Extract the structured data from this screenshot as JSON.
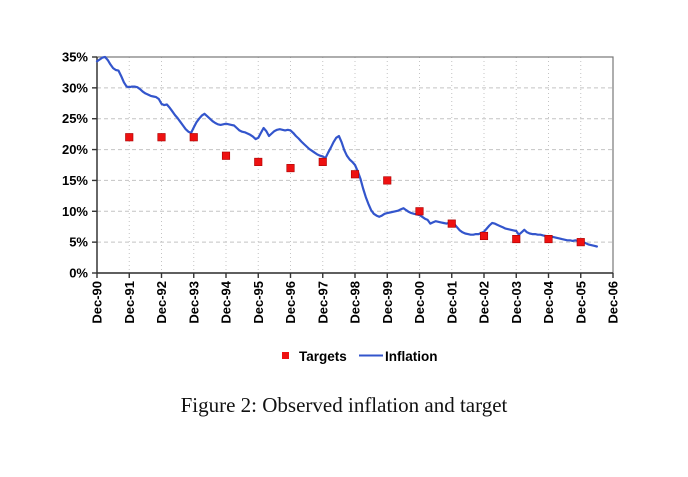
{
  "figure": {
    "caption": "Figure 2: Observed inflation and target"
  },
  "legend": {
    "targets_label": "Targets",
    "inflation_label": "Inflation"
  },
  "colors": {
    "inflation_line": "#3355cc",
    "target_marker": "#ee1111",
    "target_marker_border": "#aa0000",
    "gridline": "#c4c4c4",
    "plot_border": "#777777",
    "axis": "#333333",
    "text": "#000000",
    "background": "#ffffff"
  },
  "chart_data": {
    "type": "line",
    "title": "",
    "xlabel": "",
    "ylabel": "",
    "ylim": [
      0,
      35
    ],
    "y_tick_step": 5,
    "y_tick_labels": [
      "0%",
      "5%",
      "10%",
      "15%",
      "20%",
      "25%",
      "30%",
      "35%"
    ],
    "x_tick_labels": [
      "Dec-90",
      "Dec-91",
      "Dec-92",
      "Dec-93",
      "Dec-94",
      "Dec-95",
      "Dec-96",
      "Dec-97",
      "Dec-98",
      "Dec-99",
      "Dec-00",
      "Dec-01",
      "Dec-02",
      "Dec-03",
      "Dec-04",
      "Dec-05",
      "Dec-06"
    ],
    "grid": "dashed, both horizontal and vertical",
    "legend_position": "bottom center",
    "series": [
      {
        "name": "Inflation",
        "type": "line",
        "color": "#3355cc",
        "x_start": "Dec-90",
        "x_interval": "monthly",
        "values": [
          34.3,
          34.6,
          34.9,
          35.0,
          34.5,
          33.8,
          33.2,
          32.9,
          32.8,
          31.9,
          30.9,
          30.2,
          30.1,
          30.2,
          30.2,
          30.1,
          29.8,
          29.4,
          29.1,
          28.9,
          28.7,
          28.6,
          28.5,
          28.2,
          27.4,
          27.2,
          27.3,
          26.8,
          26.2,
          25.6,
          25.1,
          24.5,
          23.9,
          23.3,
          22.9,
          22.7,
          23.6,
          24.4,
          25.0,
          25.5,
          25.8,
          25.4,
          25.0,
          24.6,
          24.3,
          24.1,
          24.0,
          24.1,
          24.2,
          24.1,
          24.0,
          23.9,
          23.5,
          23.1,
          22.9,
          22.8,
          22.6,
          22.4,
          22.1,
          21.7,
          21.9,
          22.7,
          23.5,
          23.0,
          22.2,
          22.6,
          23.0,
          23.2,
          23.3,
          23.2,
          23.1,
          23.2,
          23.1,
          22.7,
          22.2,
          21.8,
          21.3,
          20.9,
          20.5,
          20.1,
          19.8,
          19.5,
          19.2,
          19.0,
          18.9,
          18.6,
          19.5,
          20.3,
          21.2,
          21.9,
          22.2,
          21.2,
          19.9,
          19.0,
          18.4,
          18.0,
          17.5,
          16.5,
          15.3,
          13.7,
          12.3,
          11.2,
          10.2,
          9.6,
          9.3,
          9.1,
          9.3,
          9.6,
          9.7,
          9.8,
          9.9,
          10.0,
          10.1,
          10.3,
          10.5,
          10.2,
          9.9,
          9.7,
          9.6,
          9.5,
          9.4,
          9.1,
          8.8,
          8.6,
          8.0,
          8.2,
          8.4,
          8.3,
          8.2,
          8.1,
          8.0,
          8.1,
          8.1,
          7.9,
          7.4,
          6.9,
          6.6,
          6.4,
          6.3,
          6.2,
          6.2,
          6.3,
          6.3,
          6.5,
          6.7,
          7.2,
          7.7,
          8.1,
          8.0,
          7.8,
          7.6,
          7.4,
          7.2,
          7.1,
          7.0,
          6.9,
          6.8,
          6.2,
          6.6,
          7.0,
          6.6,
          6.4,
          6.3,
          6.3,
          6.2,
          6.2,
          6.1,
          6.0,
          5.9,
          5.9,
          5.8,
          5.7,
          5.6,
          5.5,
          5.4,
          5.3,
          5.3,
          5.2,
          5.3,
          5.2,
          5.1,
          5.0,
          4.8,
          4.6,
          4.5,
          4.4,
          4.3
        ]
      },
      {
        "name": "Targets",
        "type": "scatter-square",
        "color": "#ee1111",
        "x": [
          "Dec-91",
          "Dec-92",
          "Dec-93",
          "Dec-94",
          "Dec-95",
          "Dec-96",
          "Dec-97",
          "Dec-98",
          "Dec-99",
          "Dec-00",
          "Dec-01",
          "Dec-02",
          "Dec-03",
          "Dec-04",
          "Dec-05"
        ],
        "values": [
          22,
          22,
          22,
          19,
          18,
          17,
          18,
          16,
          15,
          10,
          8,
          6,
          5.5,
          5.5,
          5
        ]
      }
    ]
  }
}
